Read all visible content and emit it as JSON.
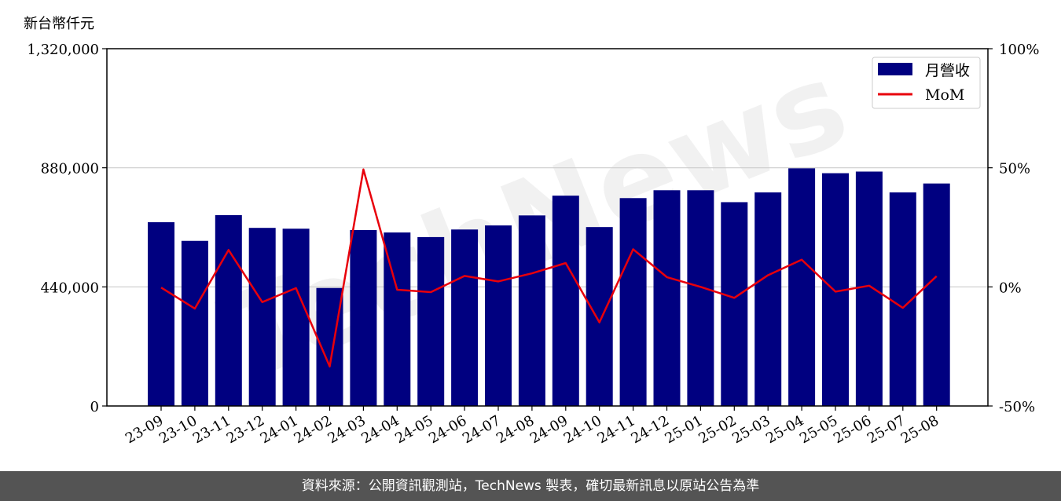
{
  "chart_data": {
    "type": "bar",
    "unit_label": "新台幣仟元",
    "categories": [
      "23-09",
      "23-10",
      "23-11",
      "23-12",
      "24-01",
      "24-02",
      "24-03",
      "24-04",
      "24-05",
      "24-06",
      "24-07",
      "24-08",
      "24-09",
      "24-10",
      "24-11",
      "24-12",
      "25-01",
      "25-02",
      "25-03",
      "25-04",
      "25-05",
      "25-06",
      "25-07",
      "25-08"
    ],
    "series": [
      {
        "name": "月營收",
        "axis": "left",
        "color": "#000080",
        "values": [
          679000,
          610000,
          705000,
          658000,
          655000,
          436000,
          650000,
          641000,
          624000,
          652000,
          667000,
          704000,
          777000,
          661000,
          768000,
          797000,
          797000,
          753000,
          789000,
          878000,
          860000,
          866000,
          789000,
          822000
        ]
      },
      {
        "name": "MoM",
        "axis": "right",
        "color": "#e8000b",
        "type": "line",
        "values": [
          -0.3,
          -9.1,
          15.5,
          -6.4,
          -0.5,
          -33.4,
          49.3,
          -1.2,
          -2.2,
          4.6,
          2.3,
          5.7,
          10.0,
          -14.9,
          15.8,
          4.1,
          0.0,
          -4.6,
          4.9,
          11.4,
          -2.0,
          0.5,
          -8.8,
          4.5
        ]
      }
    ],
    "y_left": {
      "min": 0,
      "max": 1320000,
      "ticks": [
        0,
        440000,
        880000,
        1320000
      ],
      "tick_labels": [
        "0",
        "440,000",
        "880,000",
        "1,320,000"
      ]
    },
    "y_right": {
      "min": -50,
      "max": 100,
      "ticks": [
        -50,
        0,
        50,
        100
      ],
      "tick_labels": [
        "-50%",
        "0%",
        "50%",
        "100%"
      ]
    },
    "grid": "horizontal",
    "legend_position": "top-right",
    "watermark": "TechNews"
  },
  "footer": {
    "text": "資料來源：公開資訊觀測站，TechNews 製表，確切最新訊息以原站公告為準"
  }
}
